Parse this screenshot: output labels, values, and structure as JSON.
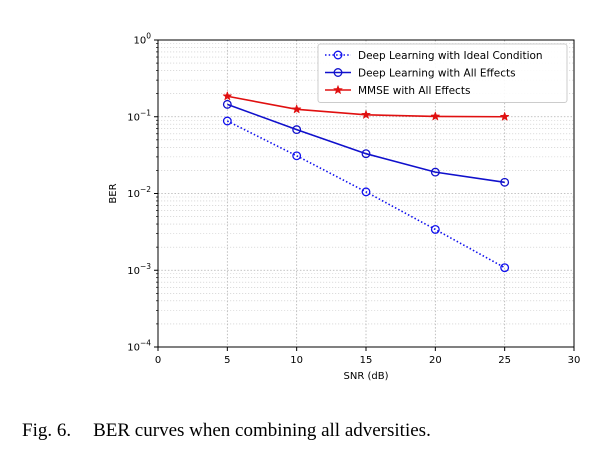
{
  "caption": {
    "number": "Fig. 6.",
    "text": "BER curves when combining all adversities."
  },
  "chart_data": {
    "type": "line",
    "xlabel": "SNR (dB)",
    "ylabel": "BER",
    "xlim": [
      0,
      30
    ],
    "ylim": [
      0.0001,
      1
    ],
    "yscale": "log",
    "grid": true,
    "legend_position": "top-right",
    "x_ticks": [
      0,
      5,
      10,
      15,
      20,
      25,
      30
    ],
    "y_ticks": [
      {
        "value": 1,
        "base": "10",
        "exp": "0"
      },
      {
        "value": 0.1,
        "base": "10",
        "exp": "−1"
      },
      {
        "value": 0.01,
        "base": "10",
        "exp": "−2"
      },
      {
        "value": 0.001,
        "base": "10",
        "exp": "−3"
      },
      {
        "value": 0.0001,
        "base": "10",
        "exp": "−4"
      }
    ],
    "x": [
      5,
      10,
      15,
      20,
      25
    ],
    "series": [
      {
        "name": "Deep Learning with Ideal Condition",
        "values": [
          0.088,
          0.031,
          0.0105,
          0.0034,
          0.00108
        ],
        "color": "#1010ee",
        "line": "dotted",
        "marker": "circle"
      },
      {
        "name": "Deep Learning with All Effects",
        "values": [
          0.145,
          0.068,
          0.033,
          0.019,
          0.014
        ],
        "color": "#1010cc",
        "line": "solid",
        "marker": "circle"
      },
      {
        "name": "MMSE with All Effects",
        "values": [
          0.185,
          0.125,
          0.106,
          0.101,
          0.1
        ],
        "color": "#e01010",
        "line": "solid",
        "marker": "star"
      }
    ]
  }
}
